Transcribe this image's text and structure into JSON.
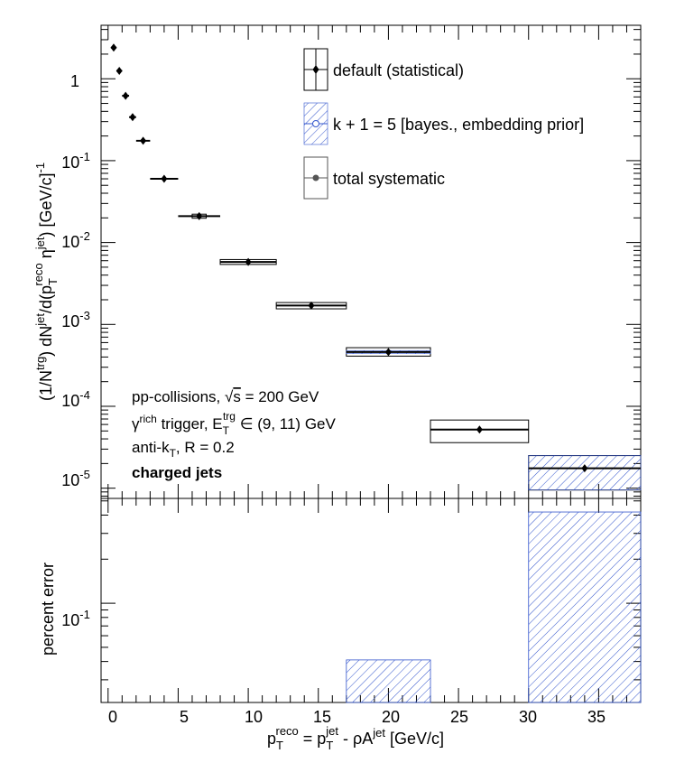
{
  "chart_data": [
    {
      "type": "scatter",
      "panel": "upper",
      "xlim": [
        -0.5,
        38
      ],
      "ylim": [
        7.5e-06,
        4.5
      ],
      "yscale": "log",
      "grid": false,
      "legend_position": "top-right",
      "ylabel": {
        "open": "(1/N",
        "sup_trg": "trg",
        "mid1": ") dN",
        "sup_jet": "jet",
        "mid2": "/d(p",
        "sub_T": "T",
        "sup_reco": "reco",
        "mid3": " η",
        "sup_jet2": "jet",
        "close": ") [GeV/c]",
        "sup_minus1": "-1"
      },
      "y_tick_labels": [
        {
          "value": 10,
          "base": "1",
          "exp": ""
        },
        {
          "value": 0.1,
          "base": "10",
          "exp": "-1"
        },
        {
          "value": 0.01,
          "base": "10",
          "exp": "-2"
        },
        {
          "value": 0.001,
          "base": "10",
          "exp": "-3"
        },
        {
          "value": 0.0001,
          "base": "10",
          "exp": "-4"
        },
        {
          "value": 1e-05,
          "base": "10",
          "exp": "-5"
        }
      ],
      "series": [
        {
          "name": "default (statistical)",
          "x": [
            0.4,
            0.8,
            1.25,
            1.75,
            2.5,
            4.0,
            6.5,
            10.0,
            14.5,
            20.0,
            26.5,
            34.0
          ],
          "x_err": [
            0.2,
            0.2,
            0.25,
            0.25,
            0.5,
            1.0,
            1.5,
            2.0,
            2.5,
            3.0,
            3.5,
            4.0
          ],
          "y": [
            2.4,
            1.25,
            0.62,
            0.34,
            0.175,
            0.06,
            0.021,
            0.0058,
            0.0017,
            0.00046,
            5.2e-05,
            1.75e-05
          ]
        },
        {
          "name": "total systematic",
          "x_lo": [
            6.0,
            8.0,
            12.0,
            17.0,
            23.0,
            30.0
          ],
          "x_hi": [
            7.0,
            12.0,
            17.0,
            23.0,
            30.0,
            38.0
          ],
          "y_lo": [
            0.0198,
            0.0054,
            0.00155,
            0.00041,
            3.6e-05,
            9.5e-06
          ],
          "y_hi": [
            0.0222,
            0.0062,
            0.00185,
            0.00052,
            6.8e-05,
            2.5e-05
          ]
        },
        {
          "name": "k + 1 = 5 [bayes., embedding prior]",
          "hatched_boxes": [
            {
              "x_lo": 17.0,
              "x_hi": 23.0,
              "y_lo": 0.00044,
              "y_hi": 0.00048
            },
            {
              "x_lo": 30.0,
              "x_hi": 38.0,
              "y_lo": 9.5e-06,
              "y_hi": 2.5e-05
            }
          ]
        }
      ],
      "annotations": {
        "line1": {
          "pre": "pp-collisions, ",
          "sqrt": "√",
          "s": "s",
          "post": " = 200 GeV"
        },
        "line2": {
          "gamma": "γ",
          "sup_rich": "rich",
          "mid": " trigger, E",
          "sub_T": "T",
          "sup_trg": "trg",
          "post": " ∈ (9, 11) GeV"
        },
        "line3": {
          "pre": "anti-k",
          "sub_T": "T",
          "post": ", R = 0.2"
        },
        "line4": "charged jets"
      }
    },
    {
      "type": "bar",
      "panel": "lower",
      "xlim": [
        -0.5,
        38
      ],
      "ylim": [
        0.021,
        0.52
      ],
      "yscale": "log",
      "ylabel": "percent error",
      "y_tick_labels": [
        {
          "value": 0.1,
          "base": "10",
          "exp": "-1"
        }
      ],
      "x_ticks": [
        0,
        5,
        10,
        15,
        20,
        25,
        30,
        35
      ],
      "x_tick_labels": [
        "0",
        "5",
        "10",
        "15",
        "20",
        "25",
        "30",
        "35"
      ],
      "xlabel": {
        "p1": "p",
        "sub_T": "T",
        "sup_reco": "reco",
        "eq": " = p",
        "sub_T2": "T",
        "sup_jet": "jet",
        "minus": " - ρA",
        "sup_jet2": "jet",
        "unit": " [GeV/c]"
      },
      "series": [
        {
          "name": "k + 1 = 5 [bayes., embedding prior]",
          "bins": [
            {
              "x_lo": 17.0,
              "x_hi": 23.0,
              "value": 0.041
            },
            {
              "x_lo": 30.0,
              "x_hi": 38.0,
              "value": 0.42
            }
          ]
        }
      ]
    }
  ],
  "colors": {
    "hatch": "#3355cc",
    "marker": "#000000",
    "sys_marker": "#555555"
  }
}
